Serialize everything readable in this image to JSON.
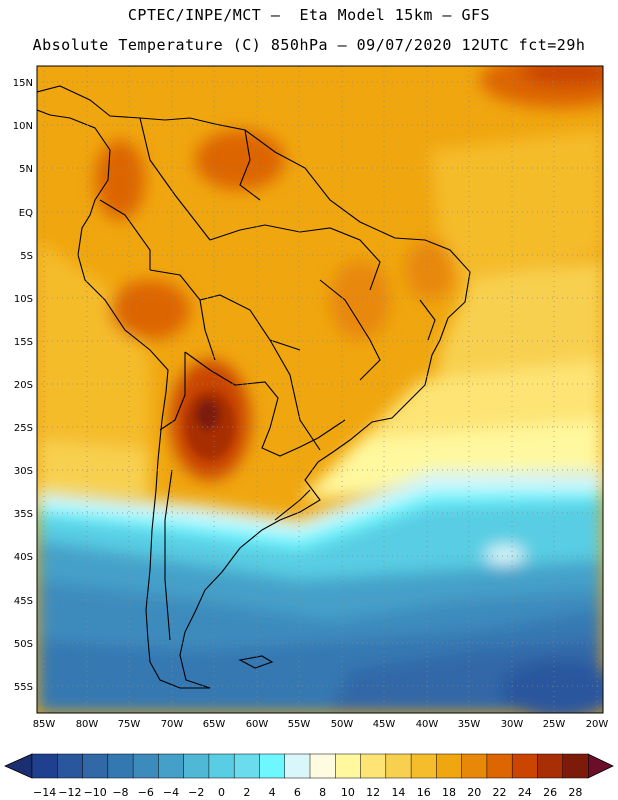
{
  "header": {
    "line1": "CPTEC/INPE/MCT –  Eta Model 15km – GFS",
    "line2": "Absolute Temperature (C) 850hPa – 09/07/2020 12UTC fct=29h"
  },
  "map": {
    "lat_labels": [
      "15N",
      "10N",
      "5N",
      "EQ",
      "5S",
      "10S",
      "15S",
      "20S",
      "25S",
      "30S",
      "35S",
      "40S",
      "45S",
      "50S",
      "55S"
    ],
    "lon_labels": [
      "85W",
      "80W",
      "75W",
      "70W",
      "65W",
      "60W",
      "55W",
      "50W",
      "45W",
      "40W",
      "35W",
      "30W",
      "25W",
      "20W"
    ]
  },
  "colorbar": {
    "ticks": [
      "-14",
      "-12",
      "-10",
      "-8",
      "-6",
      "-4",
      "-2",
      "0",
      "2",
      "4",
      "6",
      "8",
      "10",
      "12",
      "14",
      "16",
      "18",
      "20",
      "22",
      "24",
      "26",
      "28"
    ],
    "colors": [
      "#1f3f8f",
      "#2a569e",
      "#3068a8",
      "#3478b2",
      "#3c8bbd",
      "#45a0c9",
      "#4fb8d6",
      "#58cde3",
      "#6adcee",
      "#6ff7ff",
      "#d9f6fa",
      "#fffbe0",
      "#fff89e",
      "#fde474",
      "#f8d04f",
      "#f5bc2c",
      "#f0a60e",
      "#e88808",
      "#dd6502",
      "#c94500",
      "#a72e05",
      "#7c1b0a"
    ],
    "under_color": "#1b2f70",
    "over_color": "#6b0e2a"
  }
}
